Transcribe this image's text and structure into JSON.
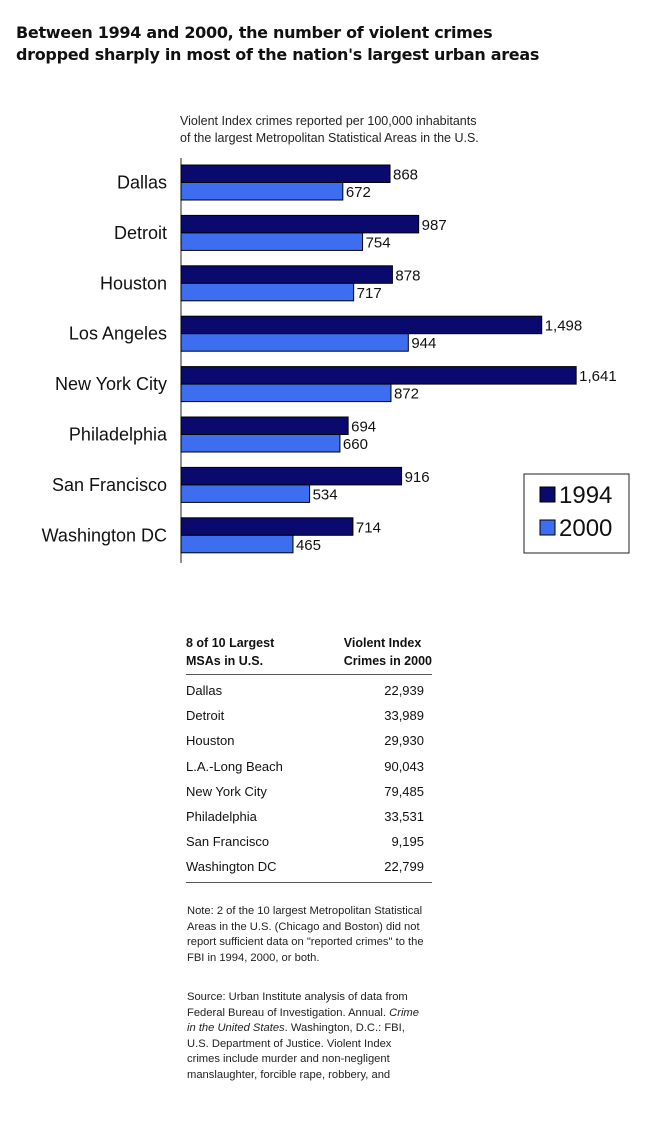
{
  "title_line1": "Between 1994 and 2000, the number of violent crimes",
  "title_line2": "dropped sharply in most of the nation's largest urban areas",
  "chart_data": {
    "type": "bar",
    "orientation": "horizontal",
    "title": "Violent Index crimes reported per 100,000 inhabitants of the largest Metropolitan Statistical Areas in the U.S.",
    "subtitle_line1": "Violent Index crimes reported per 100,000 inhabitants",
    "subtitle_line2": "of the largest Metropolitan Statistical Areas in the U.S.",
    "categories": [
      "Dallas",
      "Detroit",
      "Houston",
      "Los Angeles",
      "New York City",
      "Philadelphia",
      "San Francisco",
      "Washington DC"
    ],
    "series": [
      {
        "name": "1994",
        "color": "#0a0a6e",
        "values": [
          868,
          987,
          878,
          1498,
          1641,
          694,
          916,
          714
        ],
        "labels": [
          "868",
          "987",
          "878",
          "1,498",
          "1,641",
          "694",
          "916",
          "714"
        ]
      },
      {
        "name": "2000",
        "color": "#3d6ef0",
        "values": [
          672,
          754,
          717,
          944,
          872,
          660,
          534,
          465
        ],
        "labels": [
          "672",
          "754",
          "717",
          "944",
          "872",
          "660",
          "534",
          "465"
        ]
      }
    ],
    "xlim": [
      0,
      1700
    ],
    "legend": "right"
  },
  "table": {
    "header_col1_line1": "8 of 10 Largest",
    "header_col1_line2": "MSAs in U.S.",
    "header_col2_line1": "Violent Index",
    "header_col2_line2": "Crimes in 2000",
    "rows": [
      {
        "name": "Dallas",
        "value": "22,939"
      },
      {
        "name": "Detroit",
        "value": "33,989"
      },
      {
        "name": "Houston",
        "value": "29,930"
      },
      {
        "name": "L.A.-Long Beach",
        "value": "90,043"
      },
      {
        "name": "New York City",
        "value": "79,485"
      },
      {
        "name": "Philadelphia",
        "value": "33,531"
      },
      {
        "name": "San Francisco",
        "value": "9,195"
      },
      {
        "name": "Washington DC",
        "value": "22,799"
      }
    ]
  },
  "note": "Note: 2 of the 10 largest Metropolitan Statistical Areas in the U.S. (Chicago and Boston) did not report sufficient data on \"reported crimes\" to the FBI in 1994, 2000, or both.",
  "source_a": "Source: Urban Institute analysis of data from Federal Bureau of Investigation. Annual. ",
  "source_italic": "Crime in the United States",
  "source_b": ". Washington, D.C.: FBI, U.S. Department of Justice.  Violent Index crimes include murder and non-negligent manslaughter, forcible rape, robbery, and"
}
